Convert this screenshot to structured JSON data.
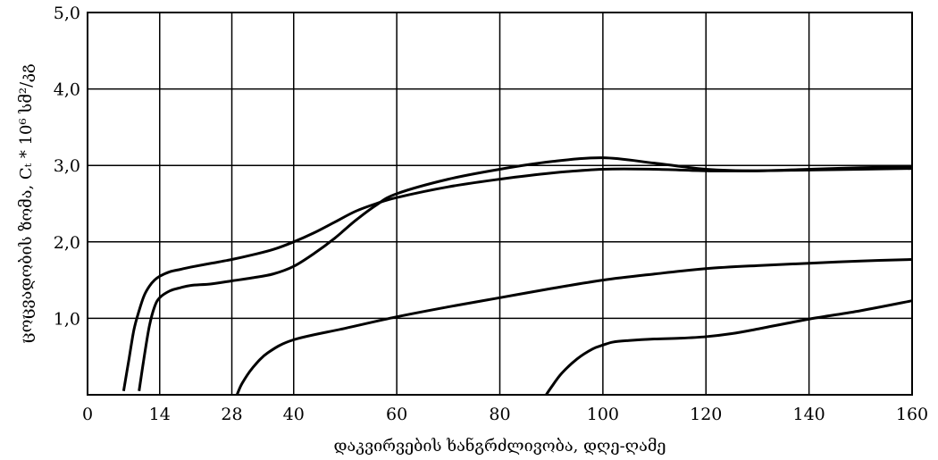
{
  "chart_data": {
    "type": "line",
    "xlabel": "დაკვირვების ხანგრძლივობა, დღე-ღამე",
    "ylabel": "ცოცვადობის ზომა, Cₜ * 10⁶ სმ²/კგ",
    "xlim": [
      0,
      160
    ],
    "ylim": [
      0,
      5.0
    ],
    "x_ticks": [
      0,
      14,
      28,
      40,
      60,
      80,
      100,
      120,
      140,
      160
    ],
    "x_tick_labels": [
      "0",
      "14",
      "28",
      "40",
      "60",
      "80",
      "100",
      "120",
      "140",
      "160"
    ],
    "y_ticks": [
      1.0,
      2.0,
      3.0,
      4.0,
      5.0
    ],
    "y_tick_labels": [
      "1,0",
      "2,0",
      "3,0",
      "4,0",
      "5,0"
    ],
    "grid": true,
    "series": [
      {
        "color": "#000000",
        "x": [
          7,
          8,
          9,
          10,
          11,
          12,
          13,
          14,
          16,
          18,
          20,
          24,
          28,
          32,
          36,
          40,
          44,
          48,
          52,
          56,
          60,
          70,
          80,
          90,
          100,
          110,
          120,
          130,
          140,
          150,
          160
        ],
        "y": [
          0.05,
          0.45,
          0.85,
          1.1,
          1.3,
          1.42,
          1.5,
          1.55,
          1.61,
          1.64,
          1.67,
          1.72,
          1.77,
          1.83,
          1.9,
          2.0,
          2.12,
          2.26,
          2.4,
          2.5,
          2.58,
          2.72,
          2.82,
          2.9,
          2.95,
          2.95,
          2.93,
          2.93,
          2.94,
          2.95,
          2.96
        ]
      },
      {
        "color": "#000000",
        "x": [
          10,
          11,
          12,
          13,
          14,
          16,
          18,
          20,
          24,
          28,
          32,
          36,
          40,
          44,
          48,
          52,
          56,
          60,
          70,
          80,
          90,
          100,
          110,
          120,
          130,
          140,
          150,
          160
        ],
        "y": [
          0.05,
          0.5,
          0.9,
          1.15,
          1.27,
          1.36,
          1.4,
          1.43,
          1.45,
          1.49,
          1.53,
          1.58,
          1.68,
          1.85,
          2.05,
          2.28,
          2.48,
          2.63,
          2.82,
          2.95,
          3.05,
          3.1,
          3.03,
          2.95,
          2.93,
          2.95,
          2.97,
          2.98
        ]
      },
      {
        "color": "#000000",
        "x": [
          29,
          30,
          32,
          35,
          40,
          50,
          60,
          70,
          80,
          90,
          100,
          110,
          120,
          130,
          140,
          150,
          160
        ],
        "y": [
          0.0,
          0.15,
          0.35,
          0.55,
          0.72,
          0.87,
          1.02,
          1.15,
          1.27,
          1.39,
          1.5,
          1.58,
          1.65,
          1.69,
          1.72,
          1.75,
          1.77
        ]
      },
      {
        "color": "#000000",
        "x": [
          89,
          90,
          92,
          95,
          98,
          100,
          102,
          105,
          110,
          115,
          120,
          125,
          130,
          140,
          150,
          160
        ],
        "y": [
          0.0,
          0.1,
          0.28,
          0.47,
          0.6,
          0.65,
          0.69,
          0.71,
          0.73,
          0.74,
          0.76,
          0.8,
          0.86,
          0.99,
          1.1,
          1.23
        ]
      }
    ]
  }
}
